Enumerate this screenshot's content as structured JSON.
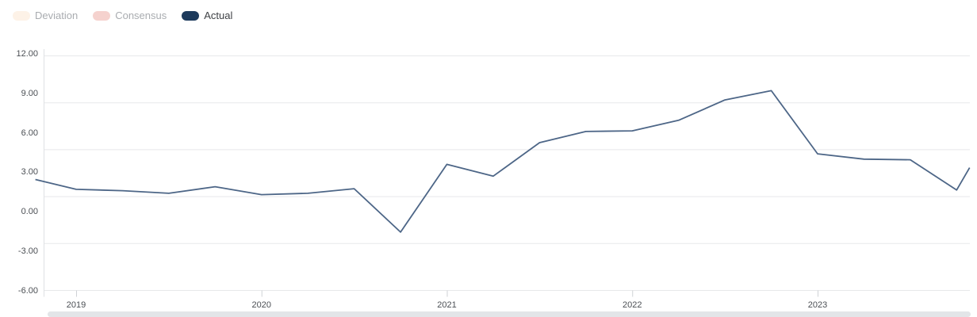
{
  "legend": {
    "items": [
      {
        "label": "Deviation",
        "color": "#fdf2e7",
        "active": false
      },
      {
        "label": "Consensus",
        "color": "#f5d2ce",
        "active": false
      },
      {
        "label": "Actual",
        "color": "#1d3a5c",
        "active": true
      }
    ]
  },
  "chart_data": {
    "type": "line",
    "title": "",
    "xlabel": "",
    "ylabel": "",
    "grid": true,
    "legend_position": "top-left",
    "y_ticks": [
      "12.00",
      "9.00",
      "6.00",
      "3.00",
      "0.00",
      "-3.00",
      "-6.00"
    ],
    "y_range": [
      -6,
      12
    ],
    "x_ticks": [
      "2019",
      "2020",
      "2021",
      "2022",
      "2023"
    ],
    "x_tick_years": [
      2019,
      2020,
      2021,
      2022,
      2023
    ],
    "series": [
      {
        "name": "Deviation",
        "color": "#fdf2e7",
        "visible": false,
        "x": [],
        "values": []
      },
      {
        "name": "Consensus",
        "color": "#f5d2ce",
        "visible": false,
        "x": [],
        "values": []
      },
      {
        "name": "Actual",
        "color": "#4d6687",
        "visible": true,
        "x": [
          2018.78,
          2019.0,
          2019.25,
          2019.5,
          2019.75,
          2020.0,
          2020.25,
          2020.5,
          2020.75,
          2021.0,
          2021.25,
          2021.5,
          2021.75,
          2022.0,
          2022.25,
          2022.5,
          2022.75,
          2023.0,
          2023.25,
          2023.5,
          2023.75,
          2023.82
        ],
        "values": [
          2.35,
          1.6,
          1.5,
          1.3,
          1.8,
          1.2,
          1.3,
          1.65,
          -1.65,
          3.5,
          2.6,
          5.15,
          6.0,
          6.05,
          6.85,
          8.4,
          9.1,
          4.3,
          3.9,
          3.85,
          1.55,
          3.25
        ]
      }
    ]
  }
}
